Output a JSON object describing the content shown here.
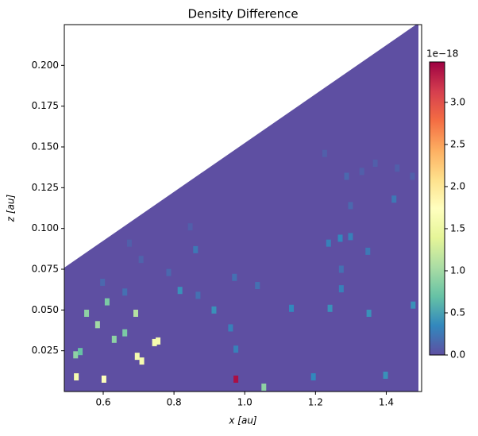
{
  "chart_data": {
    "type": "heatmap",
    "title": "Density Difference",
    "x_label": "x [au]",
    "y_label": "z [au]",
    "xlim": [
      0.49,
      1.5
    ],
    "ylim": [
      0,
      0.225
    ],
    "xticks": [
      0.6,
      0.8,
      {
        "value": 1,
        "label": "1.0"
      },
      1.2,
      1.4
    ],
    "yticks": [
      0.025,
      {
        "value": 0.05,
        "label": "0.050"
      },
      0.075,
      {
        "value": 0.1,
        "label": "0.100"
      },
      0.125,
      {
        "value": 0.15,
        "label": "0.150"
      },
      0.175,
      {
        "value": 0.2,
        "label": "0.200"
      }
    ],
    "colormap": "Spectral_r",
    "clim": [
      0,
      3.48
    ],
    "cticks": [
      {
        "value": 0,
        "label": "0.0"
      },
      0.5,
      {
        "value": 1,
        "label": "1.0"
      },
      1.5,
      {
        "value": 2,
        "label": "2.0"
      },
      2.5,
      {
        "value": 3,
        "label": "3.0"
      }
    ],
    "colorbar_offset": "1e−18",
    "x": [
      0.975,
      0.745,
      0.755,
      0.696,
      0.709,
      0.602,
      0.524,
      1.054,
      0.584,
      0.631,
      0.661,
      0.692,
      0.553,
      0.611,
      0.522,
      0.535,
      0.975,
      0.96,
      0.817,
      0.913,
      1.194,
      1.398,
      1.132,
      1.241,
      1.351,
      1.476,
      1.273,
      1.237,
      1.27,
      1.299,
      1.348,
      1.422,
      1.273,
      0.861,
      0.971,
      1.036,
      0.598,
      0.661,
      0.785,
      0.868,
      1.288,
      1.299,
      1.331,
      1.369,
      1.474,
      1.431,
      1.226,
      0.846,
      0.707,
      0.674
    ],
    "y": [
      0.0076,
      0.03,
      0.031,
      0.0216,
      0.0187,
      0.0076,
      0.009,
      0.0027,
      0.041,
      0.032,
      0.036,
      0.048,
      0.048,
      0.055,
      0.0225,
      0.0245,
      0.026,
      0.039,
      0.062,
      0.05,
      0.009,
      0.01,
      0.051,
      0.051,
      0.048,
      0.053,
      0.063,
      0.091,
      0.094,
      0.095,
      0.086,
      0.118,
      0.075,
      0.087,
      0.07,
      0.065,
      0.067,
      0.061,
      0.073,
      0.059,
      0.132,
      0.114,
      0.135,
      0.14,
      0.132,
      0.137,
      0.146,
      0.101,
      0.081,
      0.091
    ],
    "values": [
      3.4,
      1.6,
      1.6,
      1.6,
      1.6,
      1.7,
      1.6,
      0.9,
      1.0,
      0.9,
      0.8,
      1.1,
      0.9,
      0.8,
      0.9,
      0.7,
      0.3,
      0.3,
      0.4,
      0.4,
      0.35,
      0.4,
      0.35,
      0.4,
      0.4,
      0.4,
      0.3,
      0.3,
      0.35,
      0.3,
      0.25,
      0.25,
      0.2,
      0.25,
      0.2,
      0.2,
      0.15,
      0.2,
      0.15,
      0.2,
      0.15,
      0.15,
      0.1,
      0.1,
      0.1,
      0.1,
      0.1,
      0.1,
      0.12,
      0.1
    ]
  }
}
